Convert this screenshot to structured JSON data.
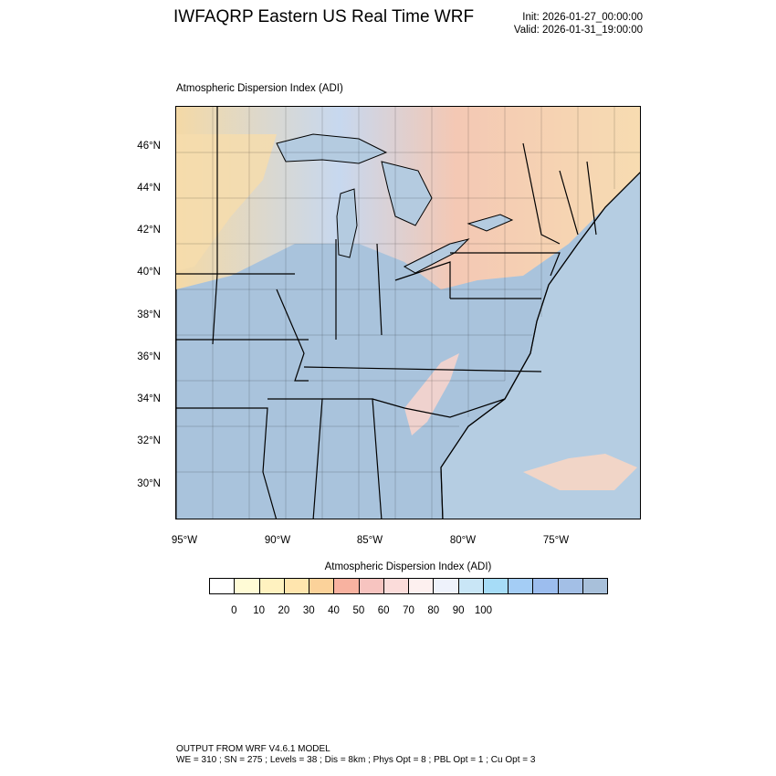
{
  "header": {
    "title": "IWFAQRP Eastern US Real Time WRF",
    "init": "Init: 2026-01-27_00:00:00",
    "valid": "Valid: 2026-01-31_19:00:00"
  },
  "plot": {
    "title": "Atmospheric Dispersion Index   (ADI)",
    "lat_labels": [
      "46°N",
      "44°N",
      "42°N",
      "40°N",
      "38°N",
      "36°N",
      "34°N",
      "32°N",
      "30°N"
    ],
    "lon_labels": [
      "95°W",
      "90°W",
      "85°W",
      "80°W",
      "75°W"
    ]
  },
  "colorbar": {
    "title": "Atmospheric Dispersion Index  (ADI)",
    "ticks": [
      "0",
      "10",
      "20",
      "30",
      "40",
      "50",
      "60",
      "70",
      "80",
      "90",
      "100"
    ],
    "colors": [
      "#ffffff",
      "#fffbd6",
      "#fff2c0",
      "#ffe5ae",
      "#fbd29a",
      "#f8b2a0",
      "#f7c4c0",
      "#fbdcda",
      "#fdf0ef",
      "#eef2fb",
      "#c9e6f6",
      "#a6dcf7",
      "#a4cdf5",
      "#9cbdee",
      "#a3bfe6",
      "#a8c0da"
    ]
  },
  "footer": {
    "line1": "OUTPUT FROM WRF V4.6.1 MODEL",
    "line2": "WE = 310 ; SN = 275 ; Levels = 38 ; Dis = 8km ; Phys Opt = 8 ; PBL Opt = 1 ; Cu Opt = 3"
  },
  "map": {
    "ocean_color": "#b5cde2",
    "land_low_adi_color": "#fde6b8",
    "land_mid_adi_color": "#f8d0c8",
    "land_high_adi_color": "#a9c3dc",
    "lake_color": "#b4cbe0"
  }
}
